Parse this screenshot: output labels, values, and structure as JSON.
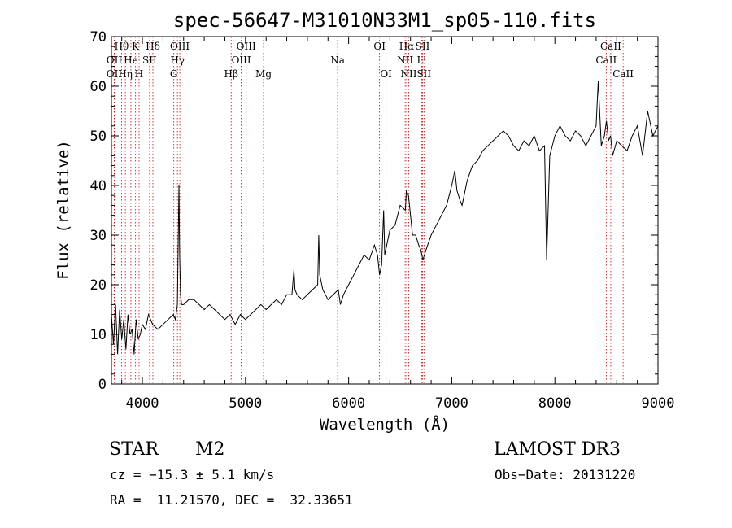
{
  "chart_data": {
    "type": "line",
    "title": "spec-56647-M31010N33M1_sp05-110.fits",
    "xlabel": "Wavelength (Å)",
    "ylabel": "Flux (relative)",
    "xlim": [
      3700,
      9000
    ],
    "ylim": [
      0,
      70
    ],
    "xticks": [
      4000,
      5000,
      6000,
      7000,
      8000,
      9000
    ],
    "yticks": [
      0,
      10,
      20,
      30,
      40,
      50,
      60,
      70
    ],
    "grid": false,
    "series": [
      {
        "name": "flux",
        "x": [
          3700,
          3720,
          3740,
          3760,
          3780,
          3800,
          3820,
          3840,
          3860,
          3880,
          3900,
          3920,
          3940,
          3960,
          3980,
          4000,
          4030,
          4060,
          4100,
          4150,
          4200,
          4250,
          4300,
          4320,
          4340,
          4355,
          4362,
          4370,
          4380,
          4400,
          4450,
          4500,
          4550,
          4600,
          4650,
          4700,
          4750,
          4800,
          4850,
          4900,
          4950,
          5000,
          5050,
          5100,
          5150,
          5200,
          5250,
          5300,
          5350,
          5400,
          5450,
          5470,
          5480,
          5500,
          5550,
          5600,
          5650,
          5700,
          5710,
          5720,
          5750,
          5800,
          5850,
          5900,
          5920,
          5950,
          6000,
          6050,
          6100,
          6150,
          6200,
          6250,
          6280,
          6300,
          6320,
          6340,
          6350,
          6400,
          6450,
          6500,
          6550,
          6560,
          6580,
          6600,
          6620,
          6650,
          6680,
          6700,
          6720,
          6750,
          6800,
          6850,
          6900,
          6950,
          7000,
          7030,
          7050,
          7080,
          7100,
          7150,
          7200,
          7250,
          7300,
          7350,
          7400,
          7450,
          7500,
          7550,
          7600,
          7650,
          7700,
          7750,
          7800,
          7850,
          7900,
          7920,
          7950,
          8000,
          8050,
          8100,
          8150,
          8200,
          8250,
          8300,
          8350,
          8400,
          8420,
          8450,
          8480,
          8500,
          8520,
          8540,
          8560,
          8600,
          8650,
          8700,
          8750,
          8800,
          8850,
          8900,
          8950,
          9000
        ],
        "values": [
          14,
          8,
          16,
          6,
          15,
          9,
          13,
          7,
          14,
          10,
          11,
          6,
          13,
          9,
          10,
          12,
          11,
          14,
          12,
          11,
          12,
          13,
          14,
          13,
          16,
          40,
          26,
          18,
          16,
          16,
          17,
          17,
          16,
          15,
          16,
          15,
          14,
          13,
          14,
          12,
          14,
          13,
          14,
          15,
          16,
          15,
          16,
          17,
          16,
          18,
          18,
          23,
          19,
          18,
          17,
          18,
          19,
          20,
          30,
          22,
          19,
          17,
          18,
          19,
          16,
          18,
          20,
          22,
          24,
          26,
          25,
          28,
          26,
          22,
          24,
          35,
          26,
          31,
          32,
          36,
          35,
          39,
          38,
          34,
          30,
          30,
          28,
          27,
          25,
          27,
          30,
          32,
          34,
          36,
          40,
          43,
          39,
          37,
          36,
          41,
          44,
          45,
          47,
          48,
          49,
          50,
          51,
          50,
          48,
          47,
          49,
          48,
          50,
          47,
          48,
          25,
          46,
          50,
          52,
          50,
          49,
          51,
          50,
          48,
          50,
          52,
          61,
          48,
          50,
          53,
          49,
          50,
          46,
          49,
          48,
          47,
          50,
          52,
          46,
          55,
          50,
          52
        ]
      }
    ],
    "lines": [
      {
        "label": "Hθ",
        "x": 3798,
        "row": 1
      },
      {
        "label": "OII",
        "x": 3727,
        "row": 2
      },
      {
        "label": "OII",
        "x": 3727,
        "row": 3
      },
      {
        "label": "Hη",
        "x": 3835,
        "row": 3
      },
      {
        "label": "He",
        "x": 3889,
        "row": 2
      },
      {
        "label": "K",
        "x": 3934,
        "row": 1
      },
      {
        "label": "H",
        "x": 3968,
        "row": 3
      },
      {
        "label": "SII",
        "x": 4070,
        "row": 2
      },
      {
        "label": "Hδ",
        "x": 4102,
        "row": 1
      },
      {
        "label": "OIII",
        "x": 4363,
        "row": 1
      },
      {
        "label": "Hγ",
        "x": 4340,
        "row": 2
      },
      {
        "label": "G",
        "x": 4305,
        "row": 3
      },
      {
        "label": "Hβ",
        "x": 4861,
        "row": 3
      },
      {
        "label": "OIII",
        "x": 5007,
        "row": 1
      },
      {
        "label": "OIII",
        "x": 4959,
        "row": 2
      },
      {
        "label": "Mg",
        "x": 5175,
        "row": 3
      },
      {
        "label": "Na",
        "x": 5893,
        "row": 2
      },
      {
        "label": "OI",
        "x": 6300,
        "row": 1
      },
      {
        "label": "OI",
        "x": 6363,
        "row": 3
      },
      {
        "label": "Hα",
        "x": 6563,
        "row": 1
      },
      {
        "label": "NII",
        "x": 6548,
        "row": 2
      },
      {
        "label": "NII",
        "x": 6583,
        "row": 3
      },
      {
        "label": "SII",
        "x": 6717,
        "row": 1
      },
      {
        "label": "Li",
        "x": 6708,
        "row": 2
      },
      {
        "label": "SII",
        "x": 6731,
        "row": 3
      },
      {
        "label": "CaII",
        "x": 8542,
        "row": 1
      },
      {
        "label": "CaII",
        "x": 8498,
        "row": 2
      },
      {
        "label": "CaII",
        "x": 8662,
        "row": 3
      }
    ]
  },
  "info": {
    "object_class": "STAR",
    "subclass": "M2",
    "survey": "LAMOST DR3",
    "cz": "cz = −15.3 ± 5.1 km/s",
    "obs_date": "Obs−Date: 20131220",
    "radec": "RA =  11.21570, DEC =  32.33651"
  }
}
